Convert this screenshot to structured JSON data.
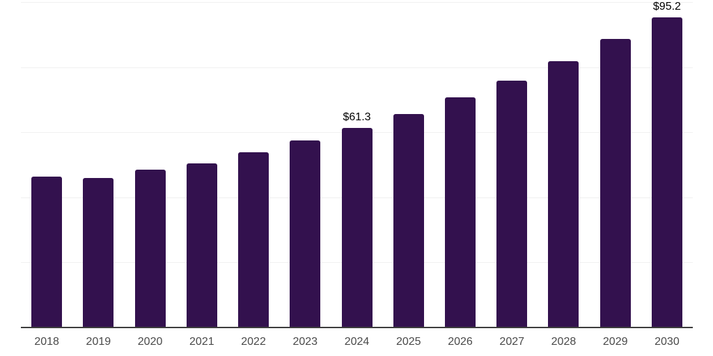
{
  "chart_data": {
    "type": "bar",
    "title": "",
    "xlabel": "",
    "ylabel": "",
    "categories": [
      "2018",
      "2019",
      "2020",
      "2021",
      "2022",
      "2023",
      "2024",
      "2025",
      "2026",
      "2027",
      "2028",
      "2029",
      "2030"
    ],
    "values": [
      46.4,
      45.9,
      48.6,
      50.5,
      53.8,
      57.5,
      61.3,
      65.7,
      70.7,
      75.9,
      81.9,
      88.6,
      95.2
    ],
    "value_labels": [
      {
        "category": "2024",
        "text": "$61.3"
      },
      {
        "category": "2030",
        "text": "$95.2"
      }
    ],
    "ylim": [
      0,
      100
    ],
    "gridline_step": 20,
    "grid": true,
    "legend": "none",
    "colors": {
      "bar": "#33114e",
      "gridline": "#f0f0f0",
      "axis_line": "#3d3d3d",
      "value_label_text": "#000000",
      "tick_label_text": "#4a4a4a",
      "background": "#ffffff"
    }
  }
}
